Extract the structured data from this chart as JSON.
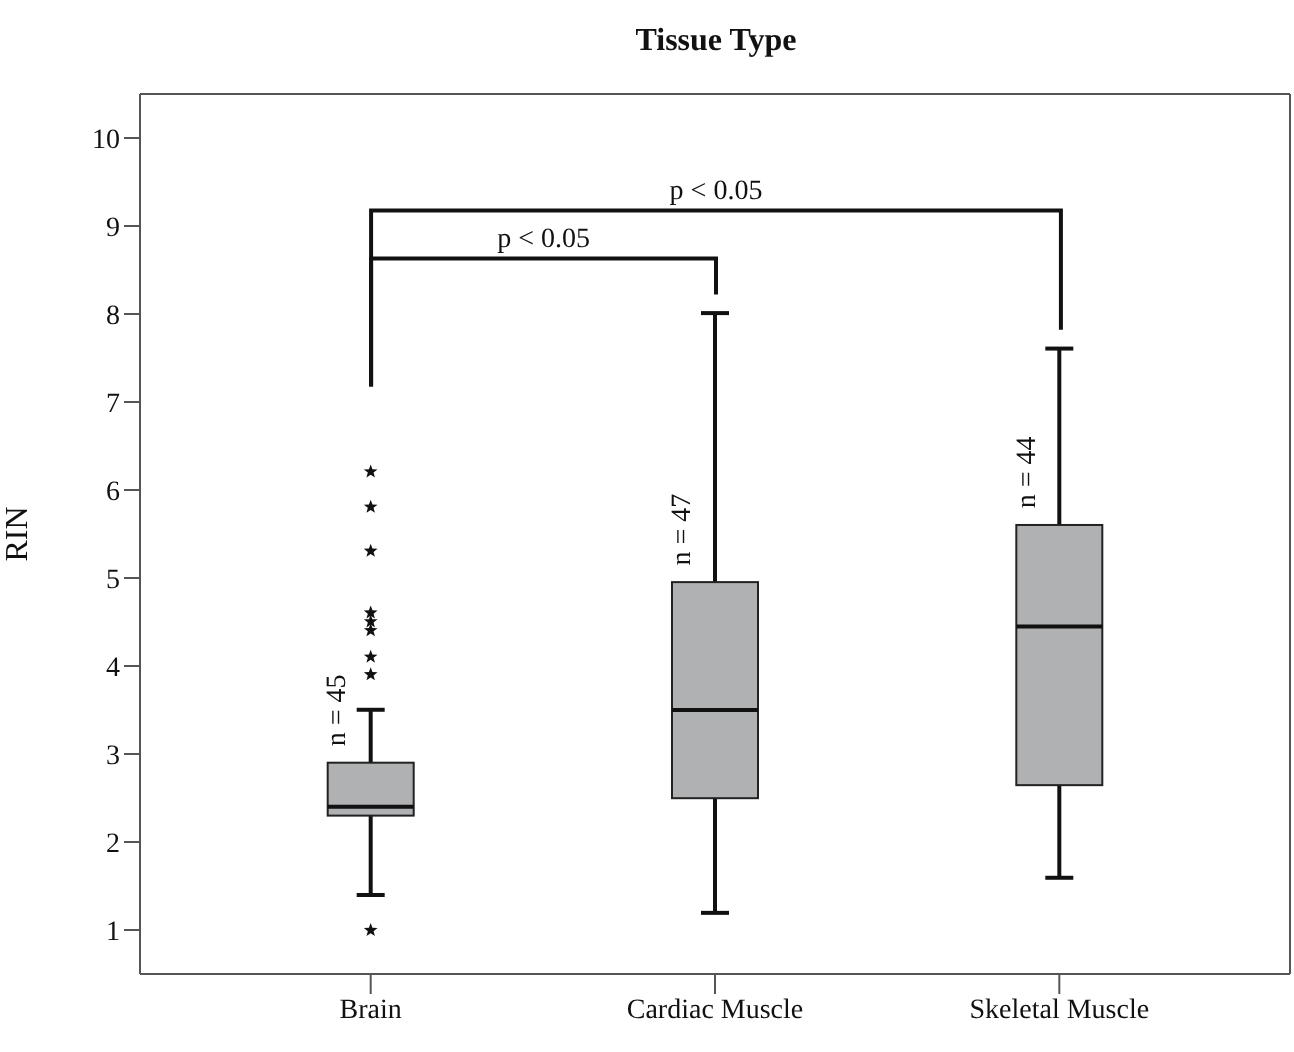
{
  "chart_data": {
    "type": "box",
    "title": "Tissue Type",
    "ylabel": "RIN",
    "categories": [
      "Brain",
      "Cardiac Muscle",
      "Skeletal Muscle"
    ],
    "boxes": [
      {
        "low": 1.4,
        "q1": 2.3,
        "median": 2.4,
        "q3": 2.9,
        "high": 3.5,
        "outliers": [
          1.0,
          3.9,
          4.1,
          4.4,
          4.5,
          4.6,
          5.3,
          5.8,
          6.2
        ]
      },
      {
        "low": 1.2,
        "q1": 2.5,
        "median": 3.5,
        "q3": 4.95,
        "high": 8.0
      },
      {
        "low": 1.6,
        "q1": 2.65,
        "median": 4.45,
        "q3": 5.6,
        "high": 7.6
      }
    ],
    "color": "#b0b1b3",
    "ylim": [
      0.5,
      10.5
    ],
    "yticks": [
      1,
      2,
      3,
      4,
      5,
      6,
      7,
      8,
      9,
      10
    ],
    "marker": "star",
    "annotations": [
      "n = 45",
      "n = 47",
      "n = 44",
      "p < 0.05",
      "p < 0.05"
    ]
  }
}
